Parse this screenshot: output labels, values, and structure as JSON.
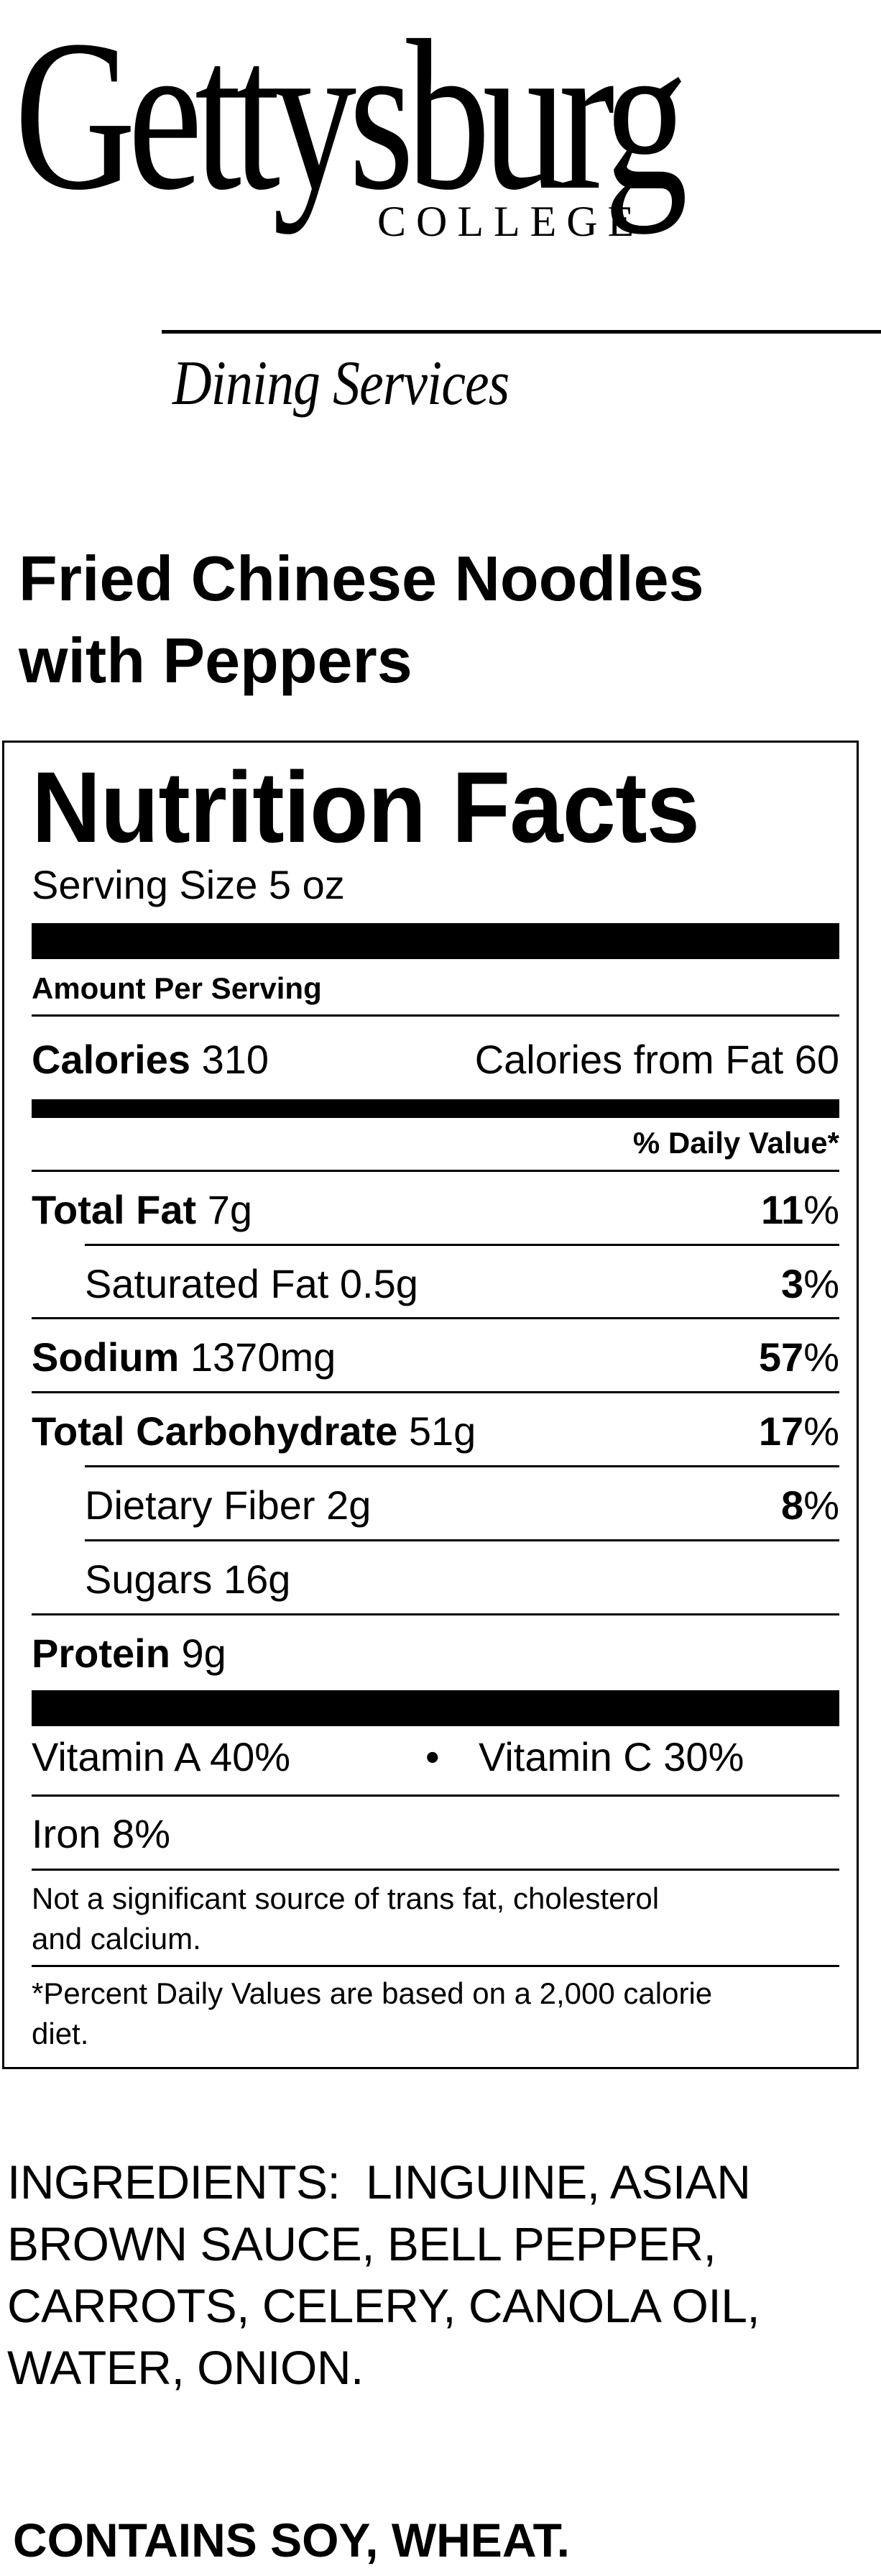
{
  "logo": {
    "wordmark": "Gettysburg",
    "subtitle": "COLLEGE",
    "department": "Dining Services"
  },
  "dish": {
    "name_line1": "Fried Chinese Noodles",
    "name_line2": "with Peppers"
  },
  "nutrition": {
    "title": "Nutrition Facts",
    "serving_size": "Serving Size 5 oz",
    "amount_per_serving": "Amount Per Serving",
    "calories_label": "Calories",
    "calories_value": "310",
    "calories_from_fat": "Calories from Fat 60",
    "daily_value_header": "% Daily Value*",
    "rows": [
      {
        "label": "Total Fat",
        "amount": "7g",
        "pct_num": "11",
        "pct_sign": "%"
      },
      {
        "label": "Saturated Fat",
        "amount": "0.5g",
        "pct_num": "3",
        "pct_sign": "%"
      },
      {
        "label": "Sodium",
        "amount": "1370mg",
        "pct_num": "57",
        "pct_sign": "%"
      },
      {
        "label": "Total Carbohydrate",
        "amount": "51g",
        "pct_num": "17",
        "pct_sign": "%"
      },
      {
        "label": "Dietary Fiber",
        "amount": "2g",
        "pct_num": "8",
        "pct_sign": "%"
      },
      {
        "label": "Sugars",
        "amount": "16g"
      },
      {
        "label": "Protein",
        "amount": "9g"
      }
    ],
    "vitamin_a": "Vitamin A 40%",
    "bullet": "•",
    "vitamin_c": "Vitamin C 30%",
    "iron": "Iron 8%",
    "note_line1": "Not a significant source of trans fat, cholesterol",
    "note_line2": "and calcium.",
    "footnote_line1": "*Percent Daily Values are based on a 2,000 calorie",
    "footnote_line2": "diet."
  },
  "ingredients": {
    "line1": "INGREDIENTS:  LINGUINE, ASIAN",
    "line2": "BROWN SAUCE, BELL PEPPER,",
    "line3": "CARROTS, CELERY, CANOLA OIL,",
    "line4": "WATER, ONION."
  },
  "allergens": "CONTAINS SOY, WHEAT."
}
